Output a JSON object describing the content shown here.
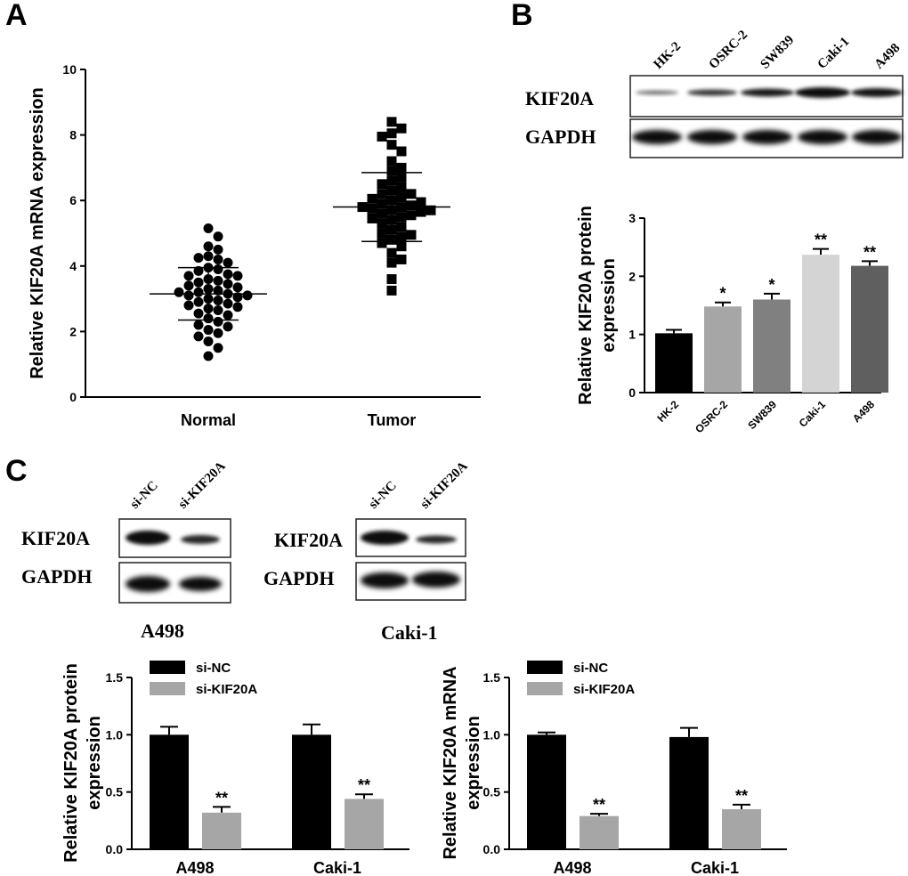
{
  "panels": {
    "A": "A",
    "B": "B",
    "C": "C"
  },
  "colors": {
    "black": "#000000",
    "dark_gray": "#5f5f5f",
    "mid_gray": "#808080",
    "light_gray": "#d4d4d4",
    "gray": "#a6a6a6"
  },
  "chart_data": [
    {
      "id": "panelA",
      "type": "scatter",
      "title": "",
      "xlabel": "",
      "ylabel": "Relative KIF20A mRNA expression",
      "categories": [
        "Normal",
        "Tumor"
      ],
      "ylim": [
        0,
        10
      ],
      "yticks": [
        0,
        2,
        4,
        6,
        8,
        10
      ],
      "series": [
        {
          "name": "Normal",
          "marker": "circle",
          "mean": 3.15,
          "sd": 0.8,
          "values": [
            5.15,
            4.9,
            4.6,
            4.5,
            4.3,
            4.25,
            4.2,
            4.1,
            3.95,
            3.9,
            3.85,
            3.75,
            3.7,
            3.7,
            3.6,
            3.55,
            3.5,
            3.45,
            3.4,
            3.35,
            3.3,
            3.25,
            3.2,
            3.2,
            3.15,
            3.1,
            3.1,
            3.05,
            3.0,
            2.95,
            2.9,
            2.85,
            2.8,
            2.75,
            2.7,
            2.65,
            2.55,
            2.5,
            2.4,
            2.3,
            2.2,
            2.15,
            2.05,
            1.95,
            1.85,
            1.7,
            1.5,
            1.25
          ]
        },
        {
          "name": "Tumor",
          "marker": "square",
          "mean": 5.8,
          "sd": 1.05,
          "values": [
            8.4,
            8.2,
            8.05,
            7.95,
            7.7,
            7.5,
            7.2,
            7.0,
            6.9,
            6.7,
            6.6,
            6.5,
            6.4,
            6.3,
            6.2,
            6.2,
            6.1,
            6.05,
            6.0,
            5.95,
            5.9,
            5.85,
            5.8,
            5.8,
            5.75,
            5.7,
            5.7,
            5.65,
            5.6,
            5.55,
            5.5,
            5.45,
            5.4,
            5.3,
            5.2,
            5.1,
            5.0,
            4.95,
            4.9,
            4.8,
            4.7,
            4.6,
            4.4,
            4.2,
            4.1,
            3.6,
            3.25
          ]
        }
      ]
    },
    {
      "id": "panelB",
      "type": "bar",
      "title": "",
      "xlabel": "",
      "ylabel": "Relative KIF20A protein expression",
      "ylabel_lines": [
        "Relative KIF20A protein",
        "expression"
      ],
      "categories": [
        "HK-2",
        "OSRC-2",
        "SW839",
        "Caki-1",
        "A498"
      ],
      "values": [
        1.02,
        1.48,
        1.6,
        2.37,
        2.18
      ],
      "errors": [
        0.06,
        0.07,
        0.1,
        0.1,
        0.08
      ],
      "significance": [
        "",
        "*",
        "*",
        "**",
        "**"
      ],
      "ylim": [
        0,
        3
      ],
      "yticks": [
        0,
        1,
        2,
        3
      ]
    },
    {
      "id": "panelC1",
      "type": "bar",
      "title": "",
      "xlabel": "",
      "ylabel": "Relative KIF20A protein expression",
      "ylabel_lines": [
        "Relative KIF20A protein",
        "expression"
      ],
      "categories": [
        "A498",
        "Caki-1"
      ],
      "series": [
        {
          "name": "si-NC",
          "values": [
            1.0,
            1.0
          ],
          "errors": [
            0.07,
            0.09
          ],
          "significance": [
            "",
            ""
          ]
        },
        {
          "name": "si-KIF20A",
          "values": [
            0.32,
            0.44
          ],
          "errors": [
            0.05,
            0.04
          ],
          "significance": [
            "**",
            "**"
          ]
        }
      ],
      "ylim": [
        0,
        1.5
      ],
      "yticks": [
        "0.0",
        "0.5",
        "1.0",
        "1.5"
      ]
    },
    {
      "id": "panelC2",
      "type": "bar",
      "title": "",
      "xlabel": "",
      "ylabel": "Relative KIF20A mRNA expression",
      "ylabel_lines": [
        "Relative KIF20A mRNA",
        "expression"
      ],
      "categories": [
        "A498",
        "Caki-1"
      ],
      "series": [
        {
          "name": "si-NC",
          "values": [
            1.0,
            0.98
          ],
          "errors": [
            0.02,
            0.08
          ],
          "significance": [
            "",
            ""
          ]
        },
        {
          "name": "si-KIF20A",
          "values": [
            0.29,
            0.35
          ],
          "errors": [
            0.02,
            0.04
          ],
          "significance": [
            "**",
            "**"
          ]
        }
      ],
      "ylim": [
        0,
        1.5
      ],
      "yticks": [
        "0.0",
        "0.5",
        "1.0",
        "1.5"
      ]
    }
  ],
  "blots": {
    "B": {
      "lanes": [
        "HK-2",
        "OSRC-2",
        "SW839",
        "Caki-1",
        "A498"
      ],
      "rows": [
        "KIF20A",
        "GAPDH"
      ]
    },
    "C_A498": {
      "lanes": [
        "si-NC",
        "si-KIF20A"
      ],
      "rows": [
        "KIF20A",
        "GAPDH"
      ],
      "cell_line": "A498"
    },
    "C_Caki": {
      "lanes": [
        "si-NC",
        "si-KIF20A"
      ],
      "rows": [
        "KIF20A",
        "GAPDH"
      ],
      "cell_line": "Caki-1"
    }
  }
}
